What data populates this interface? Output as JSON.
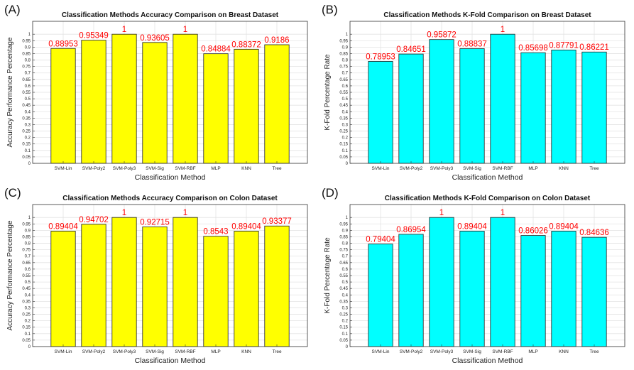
{
  "chart_data": [
    {
      "panel_label": "(A)",
      "type": "bar",
      "title": "Classification Methods Accuracy Comparison on Breast Dataset",
      "xlabel": "Classification Method",
      "ylabel": "Accuracy Performance Percentage",
      "categories": [
        "SVM-Lin",
        "SVM-Poly2",
        "SVM-Poly3",
        "SVM-Sig",
        "SVM-RBF",
        "MLP",
        "KNN",
        "Tree"
      ],
      "values": [
        0.88953,
        0.95349,
        1,
        0.93605,
        1,
        0.84884,
        0.88372,
        0.9186
      ],
      "value_labels": [
        "0.88953",
        "0.95349",
        "1",
        "0.93605",
        "1",
        "0.84884",
        "0.88372",
        "0.9186"
      ],
      "ylim": [
        0,
        1.0
      ],
      "yticks": [
        "0",
        "0.05",
        "0.1",
        "0.15",
        "0.2",
        "0.25",
        "0.3",
        "0.35",
        "0.4",
        "0.45",
        "0.5",
        "0.55",
        "0.6",
        "0.65",
        "0.7",
        "0.75",
        "0.8",
        "0.85",
        "0.9",
        "0.95",
        "1"
      ],
      "grid": true,
      "bar_color": "#ffff00",
      "label_color": "#ff0000"
    },
    {
      "panel_label": "(B)",
      "type": "bar",
      "title": "Classification Methods K-Fold Comparison on Breast Dataset",
      "xlabel": "Classification Method",
      "ylabel": "K-Fold Percentage Rate",
      "categories": [
        "SVM-Lin",
        "SVM-Poly2",
        "SVM-Poly3",
        "SVM-Sig",
        "SVM-RBF",
        "MLP",
        "KNN",
        "Tree"
      ],
      "values": [
        0.78953,
        0.84651,
        0.95872,
        0.88837,
        1,
        0.85698,
        0.87791,
        0.86221
      ],
      "value_labels": [
        "0.78953",
        "0.84651",
        "0.95872",
        "0.88837",
        "1",
        "0.85698",
        "0.87791",
        "0.86221"
      ],
      "ylim": [
        0,
        1.0
      ],
      "yticks": [
        "0",
        "0.05",
        "0.1",
        "0.15",
        "0.2",
        "0.25",
        "0.3",
        "0.35",
        "0.4",
        "0.45",
        "0.5",
        "0.55",
        "0.6",
        "0.65",
        "0.7",
        "0.75",
        "0.8",
        "0.85",
        "0.9",
        "0.95",
        "1"
      ],
      "grid": true,
      "bar_color": "#00ffff",
      "label_color": "#ff0000"
    },
    {
      "panel_label": "(C)",
      "type": "bar",
      "title": "Classification Methods Accuracy Comparison on Colon Dataset",
      "xlabel": "Classification Method",
      "ylabel": "Accuracy Performance Percentage",
      "categories": [
        "SVM-Lin",
        "SVM-Poly2",
        "SVM-Poly3",
        "SVM-Sig",
        "SVM-RBF",
        "MLP",
        "KNN",
        "Tree"
      ],
      "values": [
        0.89404,
        0.94702,
        1,
        0.92715,
        1,
        0.8543,
        0.89404,
        0.93377
      ],
      "value_labels": [
        "0.89404",
        "0.94702",
        "1",
        "0.92715",
        "1",
        "0.8543",
        "0.89404",
        "0.93377"
      ],
      "ylim": [
        0,
        1.0
      ],
      "yticks": [
        "0",
        "0.05",
        "0.1",
        "0.15",
        "0.2",
        "0.25",
        "0.3",
        "0.35",
        "0.4",
        "0.45",
        "0.5",
        "0.55",
        "0.6",
        "0.65",
        "0.7",
        "0.75",
        "0.8",
        "0.85",
        "0.9",
        "0.95",
        "1"
      ],
      "grid": true,
      "bar_color": "#ffff00",
      "label_color": "#ff0000"
    },
    {
      "panel_label": "(D)",
      "type": "bar",
      "title": "Classification Methods K-Fold Comparison on Colon Dataset",
      "xlabel": "Classification Method",
      "ylabel": "K-Fold Percentage Rate",
      "categories": [
        "SVM-Lin",
        "SVM-Poly2",
        "SVM-Poly3",
        "SVM-Sig",
        "SVM-RBF",
        "MLP",
        "KNN",
        "Tree"
      ],
      "values": [
        0.79404,
        0.86954,
        1,
        0.89404,
        1,
        0.86026,
        0.89404,
        0.84636
      ],
      "value_labels": [
        "0.79404",
        "0.86954",
        "1",
        "0.89404",
        "1",
        "0.86026",
        "0.89404",
        "0.84636"
      ],
      "ylim": [
        0,
        1.0
      ],
      "yticks": [
        "0",
        "0.05",
        "0.1",
        "0.15",
        "0.2",
        "0.25",
        "0.3",
        "0.35",
        "0.4",
        "0.45",
        "0.5",
        "0.55",
        "0.6",
        "0.65",
        "0.7",
        "0.75",
        "0.8",
        "0.85",
        "0.9",
        "0.95",
        "1"
      ],
      "grid": true,
      "bar_color": "#00ffff",
      "label_color": "#ff0000"
    }
  ]
}
